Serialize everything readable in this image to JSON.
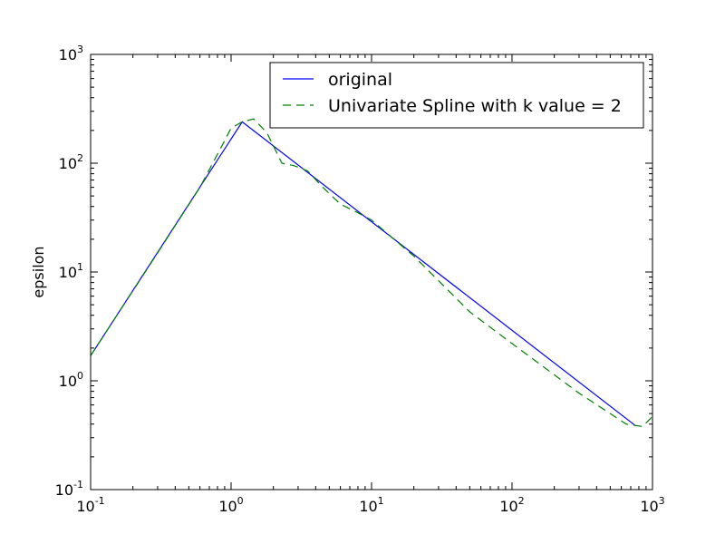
{
  "chart_data": {
    "type": "line",
    "title": "",
    "xlabel": "",
    "ylabel": "epsilon",
    "xscale": "log",
    "yscale": "log",
    "xlim": [
      0.1,
      1000
    ],
    "ylim": [
      0.1,
      1000
    ],
    "grid": false,
    "legend_position": "top-right",
    "x_ticks": [
      {
        "value": 0.1,
        "base": "10",
        "exp": "-1"
      },
      {
        "value": 1,
        "base": "10",
        "exp": "0"
      },
      {
        "value": 10,
        "base": "10",
        "exp": "1"
      },
      {
        "value": 100,
        "base": "10",
        "exp": "2"
      },
      {
        "value": 1000,
        "base": "10",
        "exp": "3"
      }
    ],
    "y_ticks": [
      {
        "value": 0.1,
        "base": "10",
        "exp": "-1"
      },
      {
        "value": 1,
        "base": "10",
        "exp": "0"
      },
      {
        "value": 10,
        "base": "10",
        "exp": "1"
      },
      {
        "value": 100,
        "base": "10",
        "exp": "2"
      },
      {
        "value": 1000,
        "base": "10",
        "exp": "3"
      }
    ],
    "series": [
      {
        "name": "original",
        "color": "#0000ff",
        "style": "solid",
        "x": [
          0.1,
          1.2,
          750
        ],
        "y": [
          1.7,
          240,
          0.39
        ]
      },
      {
        "name": "Univariate Spline with k value = 2",
        "color": "#008000",
        "style": "dashed",
        "x": [
          0.1,
          0.3,
          0.6,
          0.85,
          1.0,
          1.2,
          1.45,
          1.8,
          2.3,
          2.8,
          3.5,
          4.5,
          6,
          8,
          10,
          20,
          50,
          100,
          300,
          650,
          850,
          1000
        ],
        "y": [
          1.7,
          15,
          60,
          140,
          210,
          240,
          255,
          190,
          100,
          95,
          85,
          60,
          42,
          35,
          30,
          14,
          4.3,
          2.2,
          0.77,
          0.4,
          0.38,
          0.47
        ]
      }
    ]
  }
}
